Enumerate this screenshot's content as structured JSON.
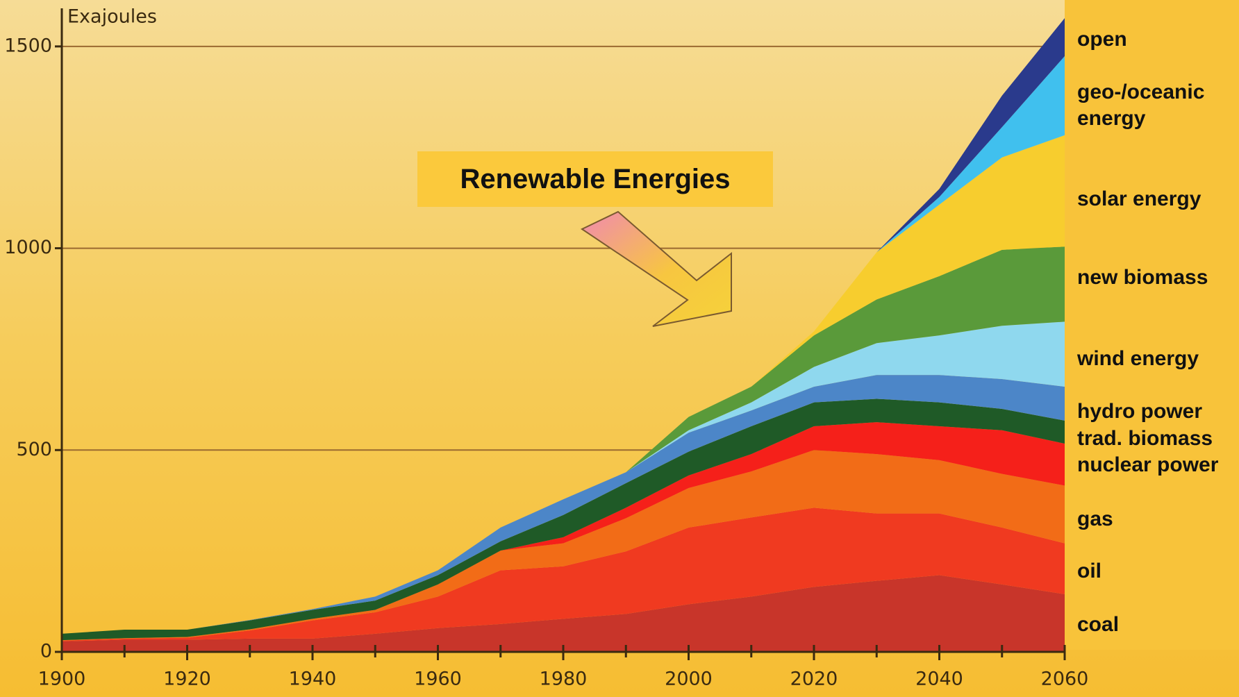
{
  "chart_data": {
    "type": "stacked-area",
    "y_label": "Exajoules",
    "annotation": "Renewable Energies",
    "x": [
      1900,
      1910,
      1920,
      1930,
      1940,
      1950,
      1960,
      1970,
      1980,
      1990,
      2000,
      2010,
      2020,
      2030,
      2040,
      2050,
      2060
    ],
    "xlim": [
      1900,
      2060
    ],
    "xticks": [
      1900,
      1920,
      1940,
      1960,
      1980,
      2000,
      2020,
      2040,
      2060
    ],
    "ylim": [
      0,
      1615
    ],
    "yticks": [
      0,
      500,
      1000,
      1500
    ],
    "grid": true,
    "series": [
      {
        "name": "coal",
        "color": "#c8352a",
        "values": [
          26,
          30,
          30,
          33,
          33,
          45,
          59,
          69,
          82,
          94,
          118,
          137,
          161,
          176,
          190,
          167,
          143
        ]
      },
      {
        "name": "oil",
        "color": "#f03a20",
        "values": [
          2,
          3,
          5,
          20,
          45,
          53,
          78,
          133,
          130,
          155,
          190,
          196,
          196,
          167,
          153,
          141,
          126
        ]
      },
      {
        "name": "gas",
        "color": "#f26c17",
        "values": [
          1,
          1,
          2,
          3,
          4,
          6,
          30,
          49,
          57,
          82,
          98,
          114,
          143,
          147,
          132,
          133,
          143
        ]
      },
      {
        "name": "nuclear power",
        "color": "#f5201a",
        "values": [
          0,
          0,
          0,
          0,
          0,
          0,
          0,
          0,
          15,
          26,
          31,
          43,
          59,
          79,
          84,
          108,
          104
        ]
      },
      {
        "name": "trad. biomass",
        "color": "#1f5a27",
        "values": [
          16,
          21,
          18,
          22,
          22,
          23,
          23,
          23,
          55,
          61,
          59,
          69,
          59,
          58,
          59,
          53,
          57
        ]
      },
      {
        "name": "hydro power",
        "color": "#4c86c8",
        "values": [
          0,
          0,
          0,
          1,
          2,
          10,
          12,
          34,
          39,
          27,
          47,
          39,
          39,
          59,
          68,
          74,
          84
        ]
      },
      {
        "name": "wind energy",
        "color": "#8fd8ee",
        "values": [
          0,
          0,
          0,
          0,
          0,
          0,
          0,
          0,
          0,
          0,
          6,
          20,
          49,
          79,
          98,
          132,
          161
        ]
      },
      {
        "name": "new biomass",
        "color": "#5a9a3a",
        "values": [
          0,
          0,
          0,
          0,
          0,
          0,
          0,
          0,
          0,
          0,
          33,
          39,
          78,
          108,
          147,
          188,
          186
        ]
      },
      {
        "name": "solar energy",
        "color": "#f7cd2e",
        "values": [
          0,
          0,
          0,
          0,
          0,
          0,
          0,
          0,
          0,
          0,
          0,
          0,
          10,
          117,
          177,
          229,
          276
        ]
      },
      {
        "name": "geo-/oceanic energy",
        "color": "#40c0ee",
        "values": [
          0,
          0,
          0,
          0,
          0,
          0,
          0,
          0,
          0,
          0,
          0,
          0,
          0,
          0,
          19,
          75,
          196
        ]
      },
      {
        "name": "open",
        "color": "#2a3a8c",
        "values": [
          0,
          0,
          0,
          0,
          0,
          0,
          0,
          0,
          0,
          0,
          0,
          0,
          0,
          0,
          20,
          78,
          94
        ]
      }
    ]
  }
}
